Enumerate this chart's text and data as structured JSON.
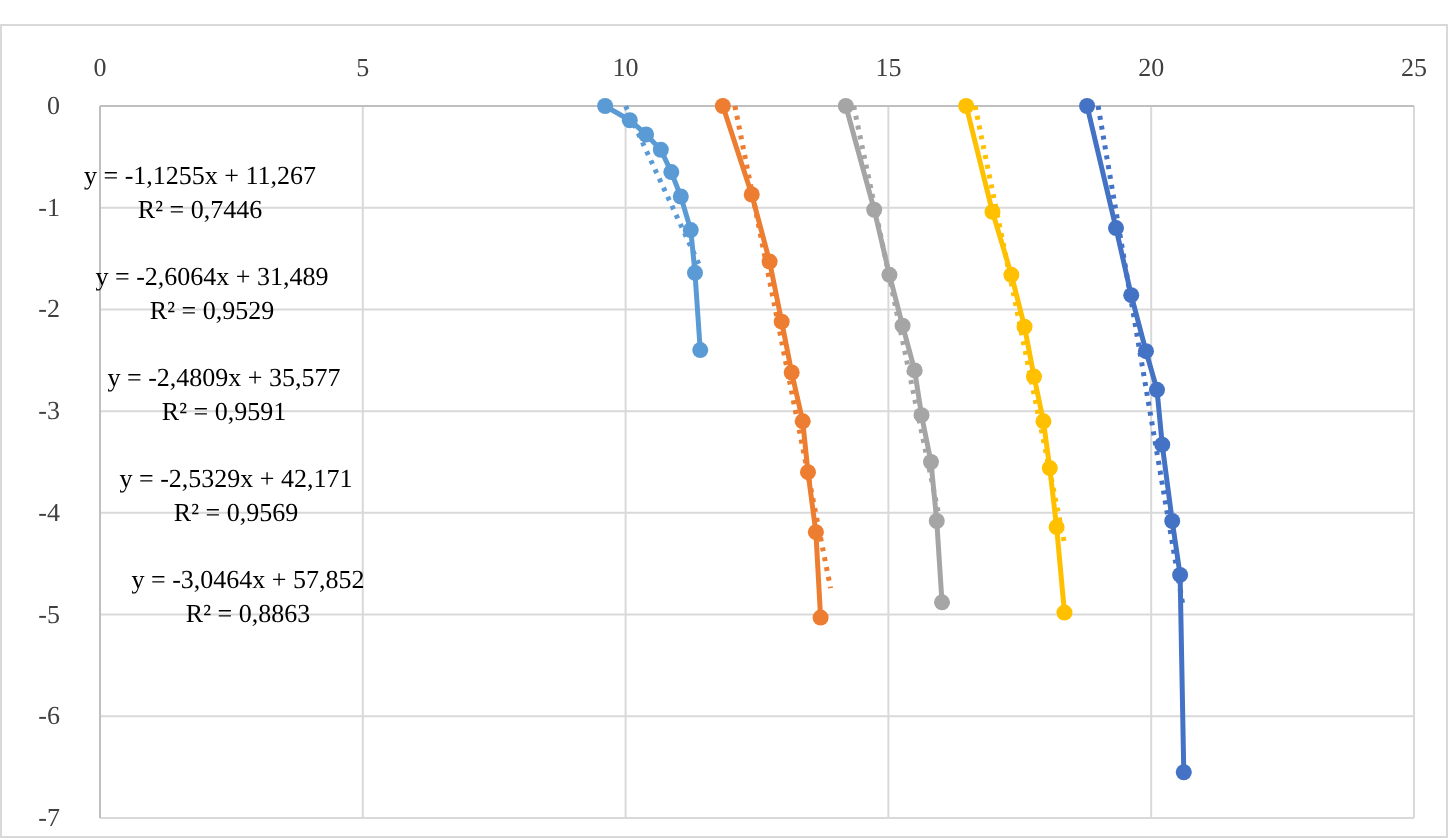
{
  "chart_data": {
    "type": "scatter",
    "xlim": [
      0,
      25
    ],
    "xticks": [
      0,
      5,
      10,
      15,
      20,
      25
    ],
    "ylim": [
      -7,
      0
    ],
    "yticks": [
      -7,
      -6,
      -5,
      -4,
      -3,
      -2,
      -1,
      0
    ],
    "grid": true,
    "marker": "circle",
    "series": [
      {
        "type": "line",
        "color": "#5b9bd5",
        "x": [
          9.61,
          10.08,
          10.39,
          10.67,
          10.87,
          11.05,
          11.24,
          11.32,
          11.42
        ],
        "values": [
          0,
          -0.14,
          -0.28,
          -0.43,
          -0.65,
          -0.89,
          -1.22,
          -1.64,
          -2.4
        ]
      },
      {
        "type": "line",
        "color": "#ed7d31",
        "x": [
          11.85,
          12.4,
          12.74,
          12.97,
          13.16,
          13.37,
          13.47,
          13.62,
          13.71
        ],
        "values": [
          0,
          -0.87,
          -1.53,
          -2.12,
          -2.62,
          -3.1,
          -3.6,
          -4.19,
          -5.03
        ]
      },
      {
        "type": "line",
        "color": "#a5a5a5",
        "x": [
          14.19,
          14.73,
          15.02,
          15.27,
          15.5,
          15.63,
          15.81,
          15.92,
          16.02
        ],
        "values": [
          0,
          -1.02,
          -1.66,
          -2.16,
          -2.6,
          -3.04,
          -3.5,
          -4.08,
          -4.88
        ]
      },
      {
        "type": "line",
        "color": "#ffc000",
        "x": [
          16.48,
          16.98,
          17.34,
          17.59,
          17.77,
          17.95,
          18.07,
          18.2,
          18.35
        ],
        "values": [
          0,
          -1.04,
          -1.66,
          -2.17,
          -2.66,
          -3.1,
          -3.56,
          -4.14,
          -4.98
        ]
      },
      {
        "type": "line",
        "color": "#4472c4",
        "x": [
          18.78,
          19.33,
          19.62,
          19.9,
          20.11,
          20.21,
          20.4,
          20.55,
          20.62
        ],
        "values": [
          0,
          -1.2,
          -1.86,
          -2.41,
          -2.79,
          -3.33,
          -4.08,
          -4.61,
          -6.55
        ]
      },
      {
        "type": "line",
        "color": "#5b9bd5",
        "line_style": "dotted",
        "marker": "none",
        "x": [
          10.0,
          11.4
        ],
        "values": [
          0,
          -1.56
        ]
      },
      {
        "type": "line",
        "color": "#ed7d31",
        "line_style": "dotted",
        "marker": "none",
        "x": [
          12.08,
          13.9
        ],
        "values": [
          0,
          -4.74
        ]
      },
      {
        "type": "line",
        "color": "#a5a5a5",
        "line_style": "dotted",
        "marker": "none",
        "x": [
          14.34,
          16.0
        ],
        "values": [
          0,
          -4.12
        ]
      },
      {
        "type": "line",
        "color": "#ffc000",
        "line_style": "dotted",
        "marker": "none",
        "x": [
          16.65,
          18.35
        ],
        "values": [
          0,
          -4.3
        ]
      },
      {
        "type": "line",
        "color": "#4472c4",
        "line_style": "dotted",
        "marker": "none",
        "x": [
          18.99,
          20.6
        ],
        "values": [
          0,
          -4.9
        ]
      }
    ],
    "annotations": [
      "y = -1,1255x  + 11,267",
      "R² = 0,7446",
      "y = -2,6064x  + 31,489",
      "R² = 0,9529",
      "y = -2,4809x  + 35,577",
      "R² = 0,9591",
      "y = -2,5329x  + 42,171",
      "R² = 0,9569",
      "y = -3,0464x  + 57,852",
      "R² = 0,8863"
    ]
  }
}
